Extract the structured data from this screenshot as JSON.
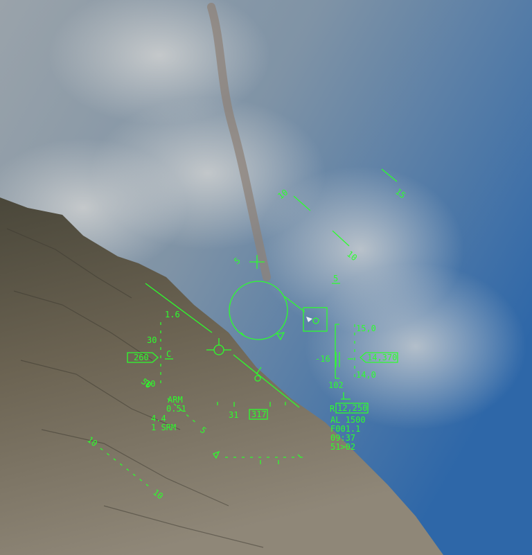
{
  "hud": {
    "pitch_ladder": {
      "upper": [
        {
          "value": "15",
          "label": "15"
        },
        {
          "value": "10",
          "label_left": "10",
          "label_right": "10"
        },
        {
          "value": "5",
          "label_left": "5"
        }
      ],
      "lower": [
        {
          "value": "-5",
          "label": "5"
        },
        {
          "value": "-10",
          "label_left": "10",
          "label_right": "10"
        }
      ]
    },
    "left_tape": {
      "top_value": "1.6",
      "scale_upper": "30",
      "scale_lower": "20",
      "readout": "260",
      "letter_c": "C",
      "mode": "ARM",
      "mode_value": "0.51",
      "g_value": "4.4",
      "weapon": "1 SRM",
      "speed_label": "50"
    },
    "right_tape": {
      "top_value": "15,0",
      "bottom_value": "14,0",
      "left_marker": "-16",
      "readout": "14,370",
      "below_value": "102",
      "r_label": "R",
      "r_value": "12,250",
      "al_line": "AL 1500",
      "line_f": "F001.1",
      "time": "09:37",
      "status": "51>02"
    },
    "heading": {
      "value_left": "31",
      "value_box": "317"
    },
    "center_tag": "5"
  },
  "colors": {
    "hud_green": "#2cff2c",
    "sky_top": "#3c6ea6",
    "terrain": "#6e6656"
  }
}
